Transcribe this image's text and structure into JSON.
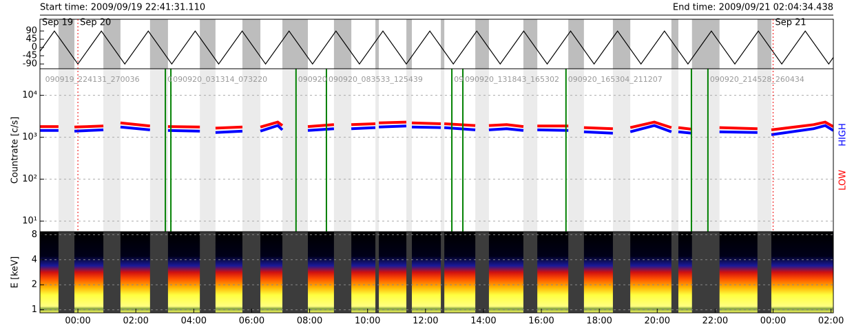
{
  "header": {
    "start_time": "Start time: 2009/09/19 22:41:31.110",
    "end_time": "End time: 2009/09/21 02:04:34.438"
  },
  "chart_data": [
    {
      "type": "line",
      "xlim": [
        -1.31,
        26.08
      ],
      "ylim": [
        -116,
        154
      ],
      "yticks": [
        90,
        45,
        0,
        -45,
        -90
      ],
      "color": "#000000",
      "grid": false,
      "x": [
        -1.31,
        -0.81,
        0,
        0.81,
        1.62,
        2.43,
        3.24,
        4.05,
        4.86,
        5.67,
        6.48,
        7.29,
        8.1,
        8.91,
        9.72,
        10.53,
        11.34,
        12.15,
        12.96,
        13.77,
        14.58,
        15.39,
        16.2,
        17.01,
        17.82,
        18.63,
        19.44,
        20.25,
        21.06,
        21.87,
        22.68,
        23.49,
        24.3,
        25.11,
        25.92,
        26.08
      ],
      "values": [
        -21,
        90,
        -90,
        90,
        -90,
        90,
        -90,
        90,
        -90,
        90,
        -90,
        90,
        -90,
        90,
        -90,
        90,
        -90,
        90,
        -90,
        90,
        -90,
        90,
        -90,
        90,
        -90,
        90,
        -90,
        90,
        -90,
        90,
        -90,
        90,
        -90,
        90,
        -90,
        -54
      ],
      "date_labels": [
        {
          "label": "Sep 19",
          "x": -1.31
        },
        {
          "label": "Sep 20",
          "x": 0
        },
        {
          "label": "Sep 21",
          "x": 24
        }
      ]
    },
    {
      "type": "line",
      "log_y": true,
      "ylabel": "Countrate [c/s]",
      "xlim": [
        -1.31,
        26.08
      ],
      "ylim": [
        5.6,
        43000
      ],
      "grid": true,
      "yticks": [
        {
          "value": 10,
          "label": "10¹"
        },
        {
          "value": 100,
          "label": "10²"
        },
        {
          "value": 1000,
          "label": "10³"
        },
        {
          "value": 10000,
          "label": "10⁴"
        }
      ],
      "x": [
        -1.31,
        -0.67,
        null,
        -0.12,
        0.88,
        null,
        1.47,
        2.49,
        null,
        3.11,
        4.21,
        null,
        4.75,
        5.68,
        null,
        6.3,
        6.9,
        7.06,
        null,
        7.94,
        8.84,
        null,
        9.44,
        10.27,
        null,
        10.39,
        11.34,
        null,
        11.53,
        12.53,
        null,
        12.65,
        13.72,
        null,
        14.19,
        14.8,
        15.38,
        null,
        15.86,
        16.93,
        null,
        17.47,
        18.47,
        null,
        19.07,
        19.9,
        20.49,
        null,
        20.73,
        21.2,
        null,
        22.15,
        23.46,
        null,
        23.94,
        25.4,
        25.8,
        26.08
      ],
      "series": [
        {
          "name": "LOW",
          "color": "#ff0000",
          "values": [
            1800,
            1800,
            null,
            1750,
            1850,
            null,
            2200,
            1850,
            null,
            1800,
            1750,
            null,
            1650,
            1750,
            null,
            1750,
            2300,
            1900,
            null,
            1800,
            2000,
            null,
            2000,
            2100,
            null,
            2200,
            2300,
            null,
            2200,
            2100,
            null,
            2100,
            1900,
            null,
            1900,
            2000,
            1800,
            null,
            1850,
            1850,
            null,
            1700,
            1600,
            null,
            1700,
            2300,
            1700,
            null,
            1700,
            1550,
            null,
            1700,
            1600,
            null,
            1500,
            2000,
            2300,
            1800
          ]
        },
        {
          "name": "HIGH",
          "color": "#0000ff",
          "values": [
            1450,
            1450,
            null,
            1400,
            1500,
            null,
            1750,
            1500,
            null,
            1450,
            1400,
            null,
            1300,
            1400,
            null,
            1400,
            1900,
            1500,
            null,
            1450,
            1600,
            null,
            1600,
            1700,
            null,
            1750,
            1850,
            null,
            1750,
            1700,
            null,
            1700,
            1500,
            null,
            1500,
            1600,
            1450,
            null,
            1500,
            1450,
            null,
            1350,
            1250,
            null,
            1350,
            1900,
            1350,
            null,
            1350,
            1250,
            null,
            1350,
            1300,
            null,
            1150,
            1600,
            1900,
            1450
          ]
        }
      ],
      "segments": [
        {
          "label": "090919_224131_270036",
          "x": -1.2
        },
        {
          "label": "0",
          "x": 3.02
        },
        {
          "label": "090920_031314_073220",
          "x": 3.21
        },
        {
          "label": "090920",
          "x": 7.53
        },
        {
          "label": "090920_083533_125439",
          "x": 8.58
        },
        {
          "label": "09",
          "x": 12.91
        },
        {
          "label": "090920_131843_165302",
          "x": 13.29
        },
        {
          "label": "090920_165304_211207",
          "x": 16.85
        },
        {
          "label": "090920_214528_260434",
          "x": 21.75
        }
      ],
      "markers": {
        "color": "#008000",
        "x": [
          3.02,
          3.21,
          7.53,
          8.58,
          12.91,
          13.29,
          16.85,
          21.18,
          21.75
        ]
      }
    },
    {
      "type": "spectrogram",
      "log_y": true,
      "ylabel": "E [keV]",
      "xlim": [
        -1.31,
        26.08
      ],
      "ylim": [
        0.92,
        8.7
      ],
      "yticks": [
        1,
        2,
        4,
        8
      ],
      "grid": true,
      "xticks": [
        {
          "value": 0,
          "label": "00:00"
        },
        {
          "value": 2,
          "label": "02:00"
        },
        {
          "value": 4,
          "label": "04:00"
        },
        {
          "value": 6,
          "label": "06:00"
        },
        {
          "value": 8,
          "label": "08:00"
        },
        {
          "value": 10,
          "label": "10:00"
        },
        {
          "value": 12,
          "label": "12:00"
        },
        {
          "value": 14,
          "label": "14:00"
        },
        {
          "value": 16,
          "label": "16:00"
        },
        {
          "value": 18,
          "label": "18:00"
        },
        {
          "value": 20,
          "label": "20:00"
        },
        {
          "value": 22,
          "label": "22:00"
        },
        {
          "value": 24,
          "label": "00:00"
        },
        {
          "value": 26,
          "label": "02:00"
        }
      ]
    }
  ]
}
